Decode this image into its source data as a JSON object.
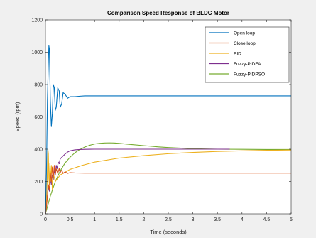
{
  "chart_data": {
    "type": "line",
    "title": "Comparison Speed Response of BLDC Motor",
    "xlabel": "Time (seconds)",
    "ylabel": "Speed (rpm)",
    "xlim": [
      0,
      5
    ],
    "ylim": [
      0,
      1200
    ],
    "xticks": [
      0,
      0.5,
      1,
      1.5,
      2,
      2.5,
      3,
      3.5,
      4,
      4.5,
      5
    ],
    "xtick_labels": [
      "0",
      "0.5",
      "1",
      "1.5",
      "2",
      "2.5",
      "3",
      "3.5",
      "4",
      "4.5",
      "5"
    ],
    "yticks": [
      0,
      200,
      400,
      600,
      800,
      1000,
      1200
    ],
    "ytick_labels": [
      "0",
      "200",
      "400",
      "600",
      "800",
      "1000",
      "1200"
    ],
    "grid": false,
    "legend_position": "top-right",
    "series": [
      {
        "name": "Open loop",
        "color": "#0072bd",
        "x": [
          0,
          0.02,
          0.04,
          0.06,
          0.07,
          0.08,
          0.1,
          0.12,
          0.14,
          0.16,
          0.18,
          0.2,
          0.22,
          0.25,
          0.28,
          0.3,
          0.33,
          0.36,
          0.4,
          0.45,
          0.5,
          0.6,
          0.7,
          0.8,
          1.0,
          1.5,
          2,
          3,
          4,
          5
        ],
        "y": [
          0,
          250,
          700,
          950,
          1040,
          1020,
          700,
          540,
          620,
          800,
          780,
          640,
          660,
          780,
          760,
          660,
          680,
          750,
          740,
          715,
          725,
          725,
          728,
          730,
          730,
          730,
          730,
          730,
          730,
          730
        ]
      },
      {
        "name": "Close loop",
        "color": "#d95319",
        "x": [
          0,
          0.02,
          0.04,
          0.06,
          0.08,
          0.1,
          0.12,
          0.14,
          0.16,
          0.18,
          0.2,
          0.22,
          0.25,
          0.28,
          0.3,
          0.33,
          0.36,
          0.4,
          0.45,
          0.5,
          0.6,
          0.8,
          1,
          2,
          3,
          4,
          5
        ],
        "y": [
          0,
          40,
          110,
          180,
          150,
          250,
          200,
          290,
          230,
          300,
          240,
          280,
          250,
          280,
          255,
          270,
          250,
          260,
          250,
          255,
          253,
          252,
          252,
          252,
          252,
          252,
          252
        ]
      },
      {
        "name": "PID",
        "color": "#edb120",
        "x": [
          0,
          0.03,
          0.05,
          0.06,
          0.07,
          0.08,
          0.09,
          0.1,
          0.12,
          0.14,
          0.16,
          0.2,
          0.3,
          0.5,
          0.75,
          1,
          1.5,
          2,
          2.5,
          3,
          3.5,
          4,
          4.5,
          5
        ],
        "y": [
          0,
          150,
          400,
          370,
          220,
          180,
          310,
          200,
          300,
          150,
          250,
          200,
          240,
          275,
          300,
          320,
          345,
          360,
          372,
          380,
          386,
          390,
          393,
          395
        ]
      },
      {
        "name": "Fuzzy-PIDFA",
        "color": "#7e2f8e",
        "x": [
          0,
          0.02,
          0.04,
          0.06,
          0.08,
          0.1,
          0.12,
          0.14,
          0.16,
          0.18,
          0.2,
          0.22,
          0.24,
          0.26,
          0.28,
          0.3,
          0.35,
          0.4,
          0.45,
          0.5,
          0.6,
          0.7,
          0.8,
          1,
          1.5,
          2,
          3,
          3.75
        ],
        "y": [
          0,
          50,
          110,
          170,
          140,
          220,
          180,
          240,
          210,
          270,
          245,
          300,
          280,
          320,
          310,
          340,
          355,
          370,
          382,
          390,
          396,
          398,
          399,
          400,
          400,
          400,
          400,
          400
        ]
      },
      {
        "name": "Fuzzy-PIDPSO",
        "color": "#77ac30",
        "x": [
          0,
          0.1,
          0.2,
          0.3,
          0.4,
          0.5,
          0.6,
          0.7,
          0.8,
          0.9,
          1,
          1.1,
          1.2,
          1.3,
          1.4,
          1.5,
          1.7,
          2,
          2.3,
          2.5,
          3,
          3.5,
          4,
          4.5,
          5
        ],
        "y": [
          0,
          110,
          200,
          265,
          315,
          350,
          378,
          398,
          413,
          424,
          432,
          436,
          438,
          439,
          438,
          436,
          430,
          422,
          414,
          410,
          403,
          400,
          399,
          398,
          398
        ]
      }
    ]
  }
}
